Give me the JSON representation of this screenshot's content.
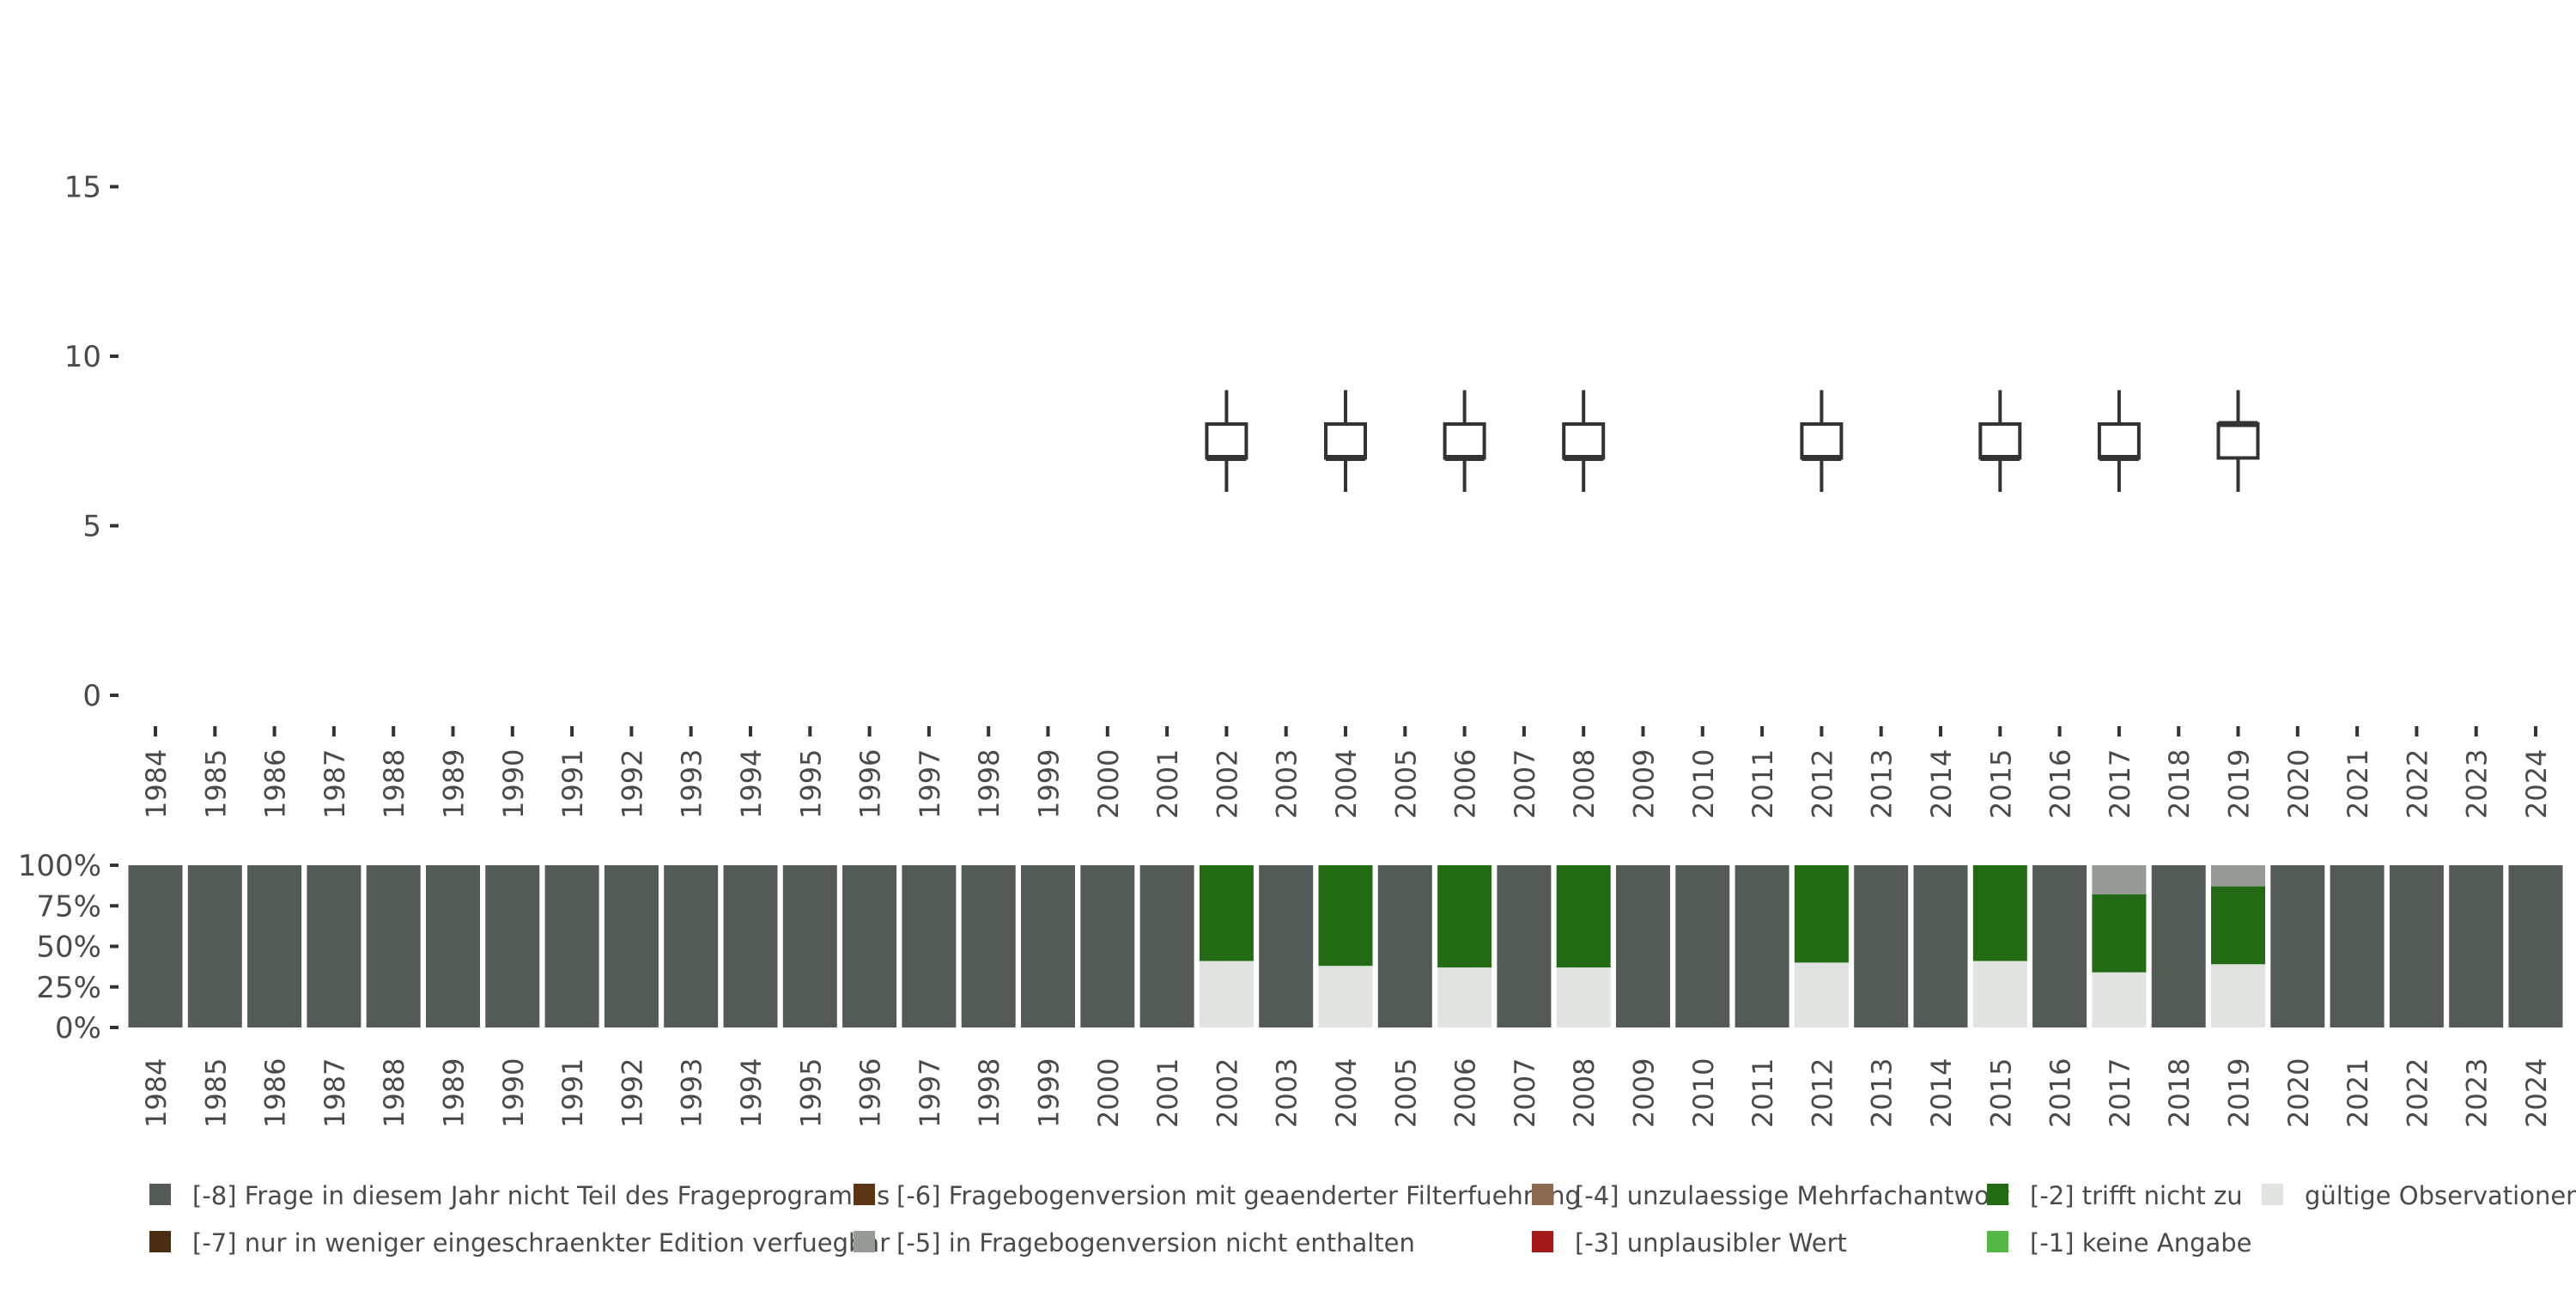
{
  "chart_data": [
    {
      "type": "boxplot",
      "title": "",
      "xlabel": "",
      "ylabel": "",
      "ylim": [
        0,
        20
      ],
      "y_ticks": [
        0,
        5,
        10,
        15
      ],
      "years": [
        "1984",
        "1985",
        "1986",
        "1987",
        "1988",
        "1989",
        "1990",
        "1991",
        "1992",
        "1993",
        "1994",
        "1995",
        "1996",
        "1997",
        "1998",
        "1999",
        "2000",
        "2001",
        "2002",
        "2003",
        "2004",
        "2005",
        "2006",
        "2007",
        "2008",
        "2009",
        "2010",
        "2011",
        "2012",
        "2013",
        "2014",
        "2015",
        "2016",
        "2017",
        "2018",
        "2019",
        "2020",
        "2021",
        "2022",
        "2023",
        "2024"
      ],
      "boxes": [
        {
          "year": "2002",
          "min": 6,
          "q1": 7,
          "median": 7,
          "q3": 8,
          "max": 9
        },
        {
          "year": "2004",
          "min": 6,
          "q1": 7,
          "median": 7,
          "q3": 8,
          "max": 9
        },
        {
          "year": "2006",
          "min": 6,
          "q1": 7,
          "median": 7,
          "q3": 8,
          "max": 9
        },
        {
          "year": "2008",
          "min": 6,
          "q1": 7,
          "median": 7,
          "q3": 8,
          "max": 9
        },
        {
          "year": "2012",
          "min": 6,
          "q1": 7,
          "median": 7,
          "q3": 8,
          "max": 9
        },
        {
          "year": "2015",
          "min": 6,
          "q1": 7,
          "median": 7,
          "q3": 8,
          "max": 9
        },
        {
          "year": "2017",
          "min": 6,
          "q1": 7,
          "median": 7,
          "q3": 8,
          "max": 9
        },
        {
          "year": "2019",
          "min": 6,
          "q1": 7,
          "median": 8,
          "q3": 8,
          "max": 9
        }
      ]
    },
    {
      "type": "stacked_bar",
      "title": "",
      "ylim": [
        0,
        1
      ],
      "y_ticks": [
        "0%",
        "25%",
        "50%",
        "75%",
        "100%"
      ],
      "years": [
        "1984",
        "1985",
        "1986",
        "1987",
        "1988",
        "1989",
        "1990",
        "1991",
        "1992",
        "1993",
        "1994",
        "1995",
        "1996",
        "1997",
        "1998",
        "1999",
        "2000",
        "2001",
        "2002",
        "2003",
        "2004",
        "2005",
        "2006",
        "2007",
        "2008",
        "2009",
        "2010",
        "2011",
        "2012",
        "2013",
        "2014",
        "2015",
        "2016",
        "2017",
        "2018",
        "2019",
        "2020",
        "2021",
        "2022",
        "2023",
        "2024"
      ],
      "category_order": [
        "gueltig",
        "m2",
        "m5",
        "m8"
      ],
      "category_colors": {
        "gueltig": "#e0e3df",
        "m2": "#226b14",
        "m5": "#979b95",
        "m8": "#545a55"
      },
      "not_in_program_share": 1.0,
      "survey_years": {
        "2002": {
          "gueltig": 0.41,
          "m2": 0.59
        },
        "2004": {
          "gueltig": 0.38,
          "m2": 0.62
        },
        "2006": {
          "gueltig": 0.37,
          "m2": 0.63
        },
        "2008": {
          "gueltig": 0.37,
          "m2": 0.63
        },
        "2012": {
          "gueltig": 0.4,
          "m2": 0.6
        },
        "2015": {
          "gueltig": 0.41,
          "m2": 0.59
        },
        "2017": {
          "gueltig": 0.34,
          "m2": 0.48,
          "m5": 0.18
        },
        "2019": {
          "gueltig": 0.39,
          "m2": 0.48,
          "m5": 0.13
        }
      }
    }
  ],
  "legend": [
    {
      "key": "m8",
      "label": "[-8] Frage in diesem Jahr nicht Teil des Frageprogramms",
      "color": "#545a55"
    },
    {
      "key": "m7",
      "label": "[-7] nur in weniger eingeschraenkter Edition verfuegbar",
      "color": "#4a2d12"
    },
    {
      "key": "m6",
      "label": "[-6] Fragebogenversion mit geaenderter Filterfuehrung",
      "color": "#5c3515"
    },
    {
      "key": "m5",
      "label": "[-5] in Fragebogenversion nicht enthalten",
      "color": "#979b95"
    },
    {
      "key": "m4",
      "label": "[-4] unzulaessige Mehrfachantwort",
      "color": "#8c6a52"
    },
    {
      "key": "m3",
      "label": "[-3] unplausibler Wert",
      "color": "#a31a1a"
    },
    {
      "key": "m2",
      "label": "[-2] trifft nicht zu",
      "color": "#226b14"
    },
    {
      "key": "m1",
      "label": "[-1] keine Angabe",
      "color": "#55b846"
    },
    {
      "key": "gueltig",
      "label": "gültige Observationen",
      "color": "#e0e3df"
    }
  ]
}
